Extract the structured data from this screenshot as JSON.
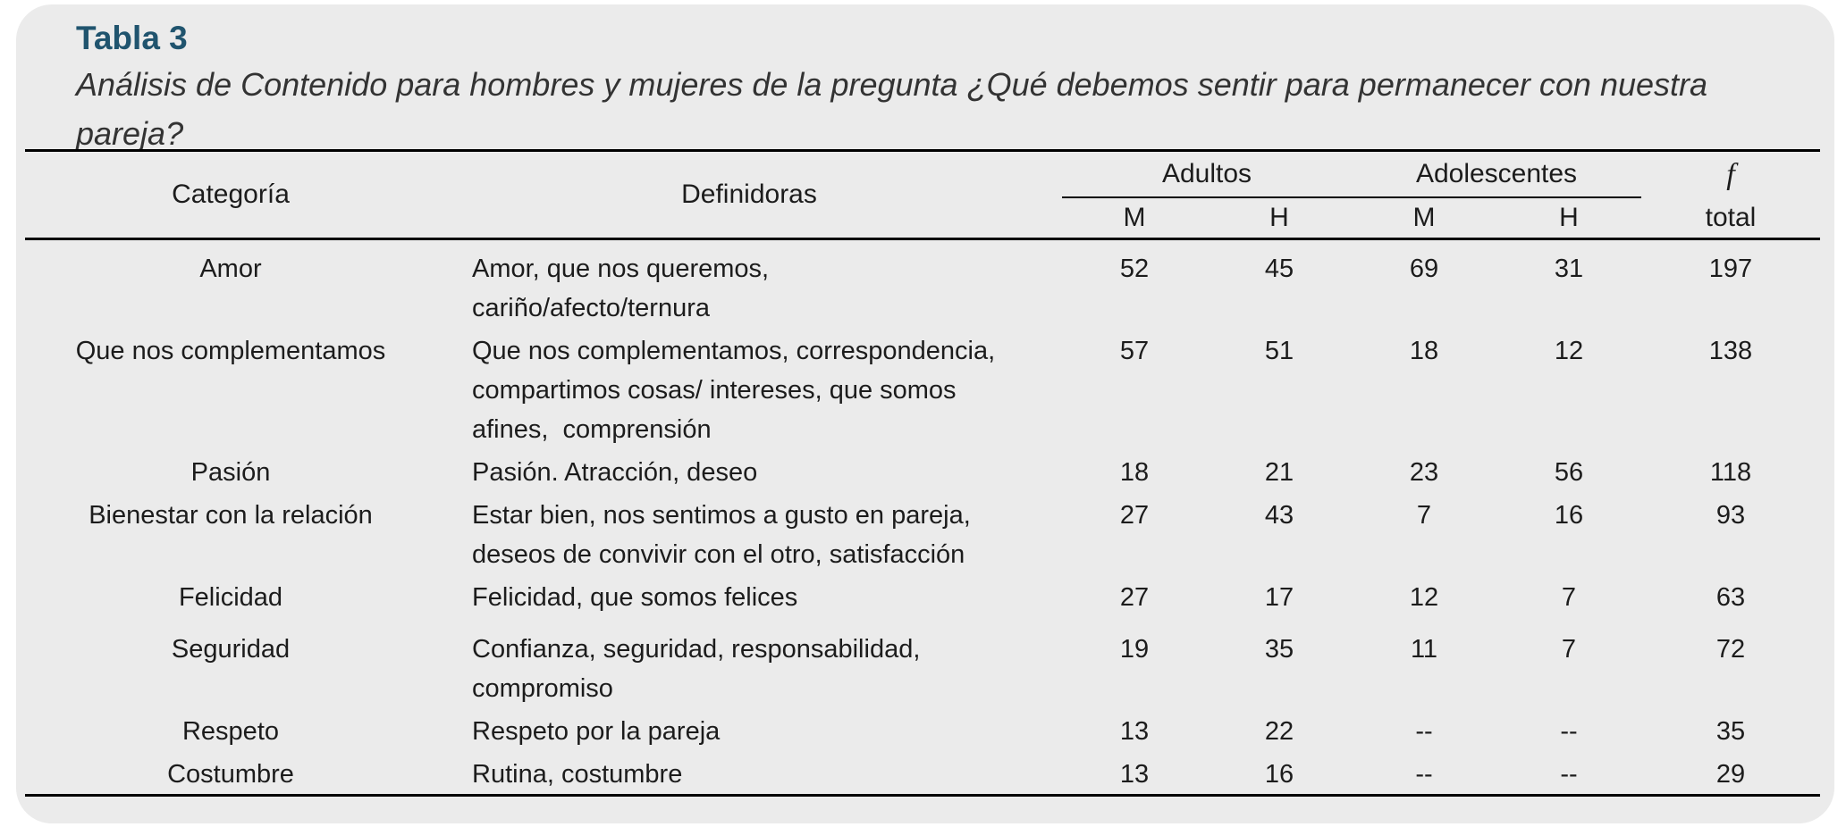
{
  "colors": {
    "page_bg": "#ffffff",
    "card_bg": "#ebebeb",
    "title_blue": "#20546e",
    "text": "#1c1c1c",
    "rule": "#000000"
  },
  "header": {
    "table_label": "Tabla 3",
    "caption_lines": [
      "Análisis de Contenido para hombres y mujeres de la pregunta ¿Qué debemos sentir para permanecer con nuestra",
      "pareja?"
    ]
  },
  "table": {
    "col_categoria": "Categoría",
    "col_definidoras": "Definidoras",
    "group_adultos": "Adultos",
    "group_adolescentes": "Adolescentes",
    "col_f": "f",
    "col_f_sub": "total",
    "sub_adultos_m": "M",
    "sub_adultos_h": "H",
    "sub_adolescentes_m": "M",
    "sub_adolescentes_h": "H",
    "rows": [
      {
        "categoria": "Amor",
        "definidoras_lines": [
          "Amor, que nos queremos,",
          "cariño/afecto/ternura"
        ],
        "adultos_m": "52",
        "adultos_h": "45",
        "adolescentes_m": "69",
        "adolescentes_h": "31",
        "f_total": "197"
      },
      {
        "categoria": "Que nos complementamos",
        "definidoras_lines": [
          "Que nos complementamos, correspondencia,",
          "compartimos cosas/ intereses, que somos",
          "afines,  comprensión"
        ],
        "adultos_m": "57",
        "adultos_h": "51",
        "adolescentes_m": "18",
        "adolescentes_h": "12",
        "f_total": "138"
      },
      {
        "categoria": "Pasión",
        "definidoras_lines": [
          "Pasión. Atracción, deseo"
        ],
        "adultos_m": "18",
        "adultos_h": "21",
        "adolescentes_m": "23",
        "adolescentes_h": "56",
        "f_total": "118"
      },
      {
        "categoria": "Bienestar con la relación",
        "definidoras_lines": [
          "Estar bien, nos sentimos a gusto en pareja,",
          "deseos de convivir con el otro, satisfacción"
        ],
        "adultos_m": "27",
        "adultos_h": "43",
        "adolescentes_m": "7",
        "adolescentes_h": "16",
        "f_total": "93"
      },
      {
        "categoria": "Felicidad",
        "definidoras_lines": [
          "Felicidad, que somos felices"
        ],
        "adultos_m": "27",
        "adultos_h": "17",
        "adolescentes_m": "12",
        "adolescentes_h": "7",
        "f_total": "63"
      },
      {
        "categoria": "Seguridad",
        "definidoras_lines": [
          "Confianza, seguridad, responsabilidad,",
          "compromiso"
        ],
        "adultos_m": "19",
        "adultos_h": "35",
        "adolescentes_m": "11",
        "adolescentes_h": "7",
        "f_total": "72"
      },
      {
        "categoria": "Respeto",
        "definidoras_lines": [
          "Respeto por la pareja"
        ],
        "adultos_m": "13",
        "adultos_h": "22",
        "adolescentes_m": "--",
        "adolescentes_h": "--",
        "f_total": "35"
      },
      {
        "categoria": "Costumbre",
        "definidoras_lines": [
          "Rutina, costumbre"
        ],
        "adultos_m": "13",
        "adultos_h": "16",
        "adolescentes_m": "--",
        "adolescentes_h": "--",
        "f_total": "29"
      }
    ]
  }
}
